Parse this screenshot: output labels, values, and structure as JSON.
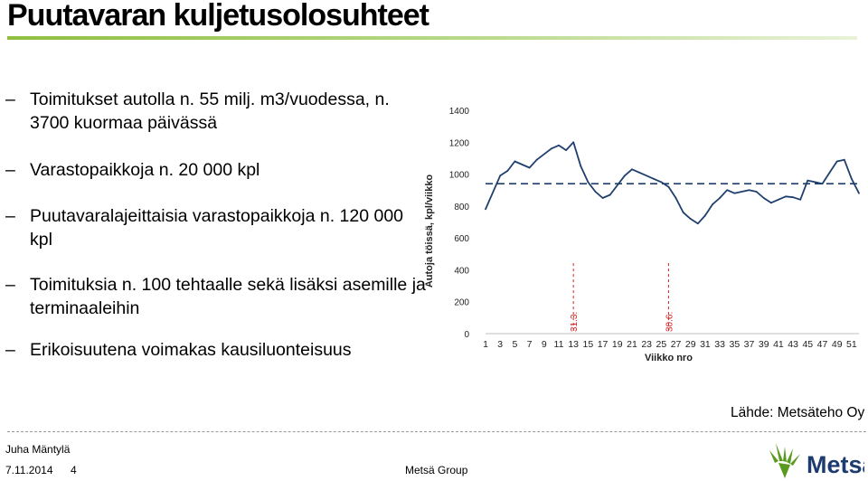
{
  "slide": {
    "title": "Puutavaran kuljetusolosuhteet",
    "bullets": [
      "Toimitukset autolla n. 55 milj. m3/vuodessa, n. 3700 kuormaa päivässä",
      "Varastopaikkoja n. 20 000 kpl",
      "Puutavaralajeittaisia varastopaikkoja n. 120 000 kpl",
      "Toimituksia n. 100 tehtaalle sekä lisäksi asemille ja terminaaleihin",
      "Erikoisuutena voimakas kausiluonteisuus"
    ],
    "bullet_marker": "–",
    "source": "Lähde: Metsäteho Oy",
    "author": "Juha Mäntylä",
    "date": "7.11.2014",
    "page_number": "4",
    "company": "Metsä Group",
    "logo_text": "Metsä"
  },
  "colors": {
    "title_rule": "#8fbf3f",
    "series_line": "#1f3f6e",
    "average_line": "#1f3f6e",
    "marker_line": "#d62020",
    "logo_green": "#5a9a1e",
    "logo_text": "#1d3b6e"
  },
  "chart_data": {
    "type": "line",
    "ylabel": "Autoja töissä, kpl/viikko",
    "xlabel": "Viikko nro",
    "ylim": [
      0,
      1400
    ],
    "yticks": [
      0,
      200,
      400,
      600,
      800,
      1000,
      1200,
      1400
    ],
    "xticks": [
      1,
      3,
      5,
      7,
      9,
      11,
      13,
      15,
      17,
      19,
      21,
      23,
      25,
      27,
      29,
      31,
      33,
      35,
      37,
      39,
      41,
      43,
      45,
      47,
      49,
      51
    ],
    "xlim": [
      1,
      52
    ],
    "series": [
      {
        "x": [
          1,
          3,
          4,
          5,
          7,
          8,
          10,
          11,
          12,
          13,
          14,
          15,
          16,
          17,
          18,
          20,
          21,
          22,
          24,
          25,
          26,
          27,
          28,
          29,
          30,
          31,
          32,
          33,
          34,
          35,
          37,
          38,
          39,
          40,
          41,
          42,
          43,
          44,
          45,
          46,
          47,
          48,
          49,
          50,
          51,
          52
        ],
        "y": [
          780,
          990,
          1020,
          1080,
          1040,
          1090,
          1160,
          1180,
          1150,
          1200,
          1050,
          950,
          890,
          850,
          870,
          990,
          1030,
          1010,
          970,
          950,
          920,
          850,
          760,
          720,
          690,
          740,
          810,
          850,
          900,
          880,
          900,
          890,
          850,
          820,
          840,
          860,
          855,
          840,
          960,
          950,
          940,
          1010,
          1080,
          1090,
          970,
          880
        ]
      }
    ],
    "average": 940,
    "annotations": [
      {
        "label": "31.3.",
        "week": 13
      },
      {
        "label": "30.6.",
        "week": 26
      }
    ]
  }
}
